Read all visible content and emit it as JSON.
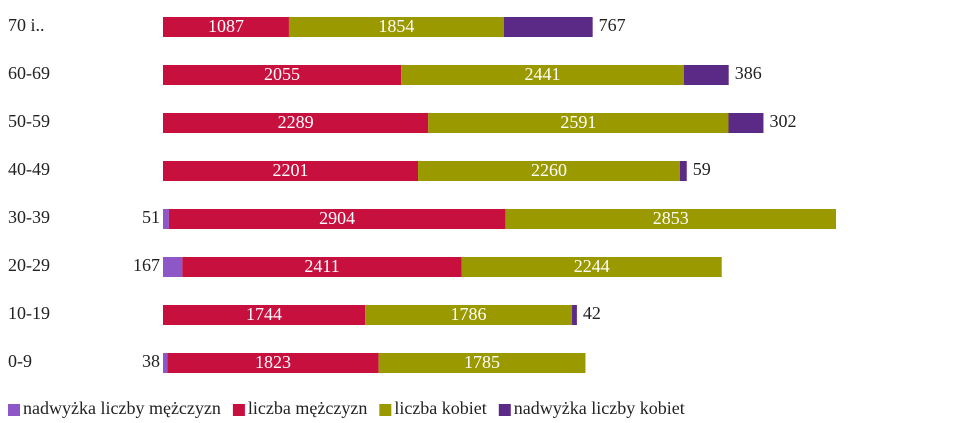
{
  "chart_data": {
    "type": "stacked_barh",
    "categories": [
      "70 i..",
      "60-69",
      "50-59",
      "40-49",
      "30-39",
      "20-29",
      "10-19",
      "0-9"
    ],
    "series": [
      {
        "name": "nadwyżka liczby mężczyzn",
        "color": "#8e57c7",
        "values": [
          null,
          null,
          null,
          null,
          51,
          167,
          null,
          38
        ]
      },
      {
        "name": "liczba mężczyzn",
        "color": "#c8103e",
        "values": [
          1087,
          2055,
          2289,
          2201,
          2904,
          2411,
          1744,
          1823
        ]
      },
      {
        "name": "liczba kobiet",
        "color": "#9a9a00",
        "values": [
          1854,
          2441,
          2591,
          2260,
          2853,
          2244,
          1786,
          1785
        ]
      },
      {
        "name": "nadwyżka liczby kobiet",
        "color": "#5b2a86",
        "values": [
          767,
          386,
          302,
          59,
          null,
          null,
          42,
          null
        ]
      }
    ]
  }
}
